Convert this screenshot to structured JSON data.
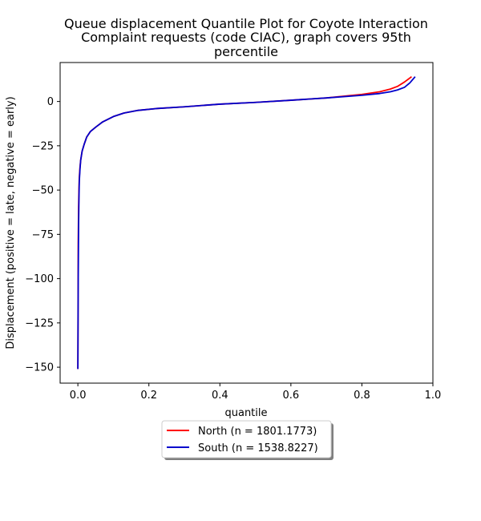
{
  "chart_data": {
    "type": "line",
    "title": [
      "Queue displacement Quantile Plot for Coyote Interaction",
      "Complaint  requests (code CIAC), graph covers 95th",
      "percentile"
    ],
    "xlabel": "quantile",
    "ylabel": "Displacement (positive = late, negative = early)",
    "xlim": [
      -0.05,
      1.0
    ],
    "ylim": [
      -159,
      22
    ],
    "xticks": [
      0.0,
      0.2,
      0.4,
      0.6,
      0.8,
      1.0
    ],
    "xtick_labels": [
      "0.0",
      "0.2",
      "0.4",
      "0.6",
      "0.8",
      "1.0"
    ],
    "yticks": [
      0,
      -25,
      -50,
      -75,
      -100,
      -125,
      -150
    ],
    "ytick_labels": [
      "0",
      "−25",
      "−50",
      "−75",
      "−100",
      "−125",
      "−150"
    ],
    "grid": false,
    "legend_position": "below",
    "series": [
      {
        "name": "North (n = 1801.1773)",
        "color": "#ff0000",
        "x": [
          0.0,
          0.001,
          0.002,
          0.003,
          0.004,
          0.006,
          0.008,
          0.012,
          0.018,
          0.025,
          0.035,
          0.05,
          0.07,
          0.1,
          0.13,
          0.17,
          0.22,
          0.3,
          0.4,
          0.5,
          0.6,
          0.7,
          0.8,
          0.85,
          0.88,
          0.9,
          0.92,
          0.94
        ],
        "y": [
          -151,
          -80,
          -60,
          -50,
          -43,
          -37,
          -33,
          -28,
          -24,
          -20,
          -17,
          -14.5,
          -11.5,
          -8.5,
          -6.5,
          -5,
          -4,
          -3,
          -1.5,
          -0.5,
          0.7,
          2,
          4,
          5.5,
          7,
          8.5,
          11,
          14
        ]
      },
      {
        "name": "South (n = 1538.8227)",
        "color": "#0000cc",
        "x": [
          0.0,
          0.001,
          0.002,
          0.003,
          0.004,
          0.006,
          0.008,
          0.012,
          0.018,
          0.025,
          0.035,
          0.05,
          0.07,
          0.1,
          0.13,
          0.17,
          0.22,
          0.3,
          0.4,
          0.5,
          0.6,
          0.7,
          0.8,
          0.85,
          0.88,
          0.9,
          0.92,
          0.935,
          0.95
        ],
        "y": [
          -151,
          -100,
          -70,
          -55,
          -45,
          -38,
          -33,
          -28,
          -24,
          -20,
          -17,
          -14.5,
          -11.5,
          -8.5,
          -6.5,
          -5,
          -4,
          -3,
          -1.5,
          -0.5,
          0.7,
          2,
          3.5,
          4.5,
          5.5,
          6.5,
          8,
          10.5,
          14
        ]
      }
    ]
  }
}
